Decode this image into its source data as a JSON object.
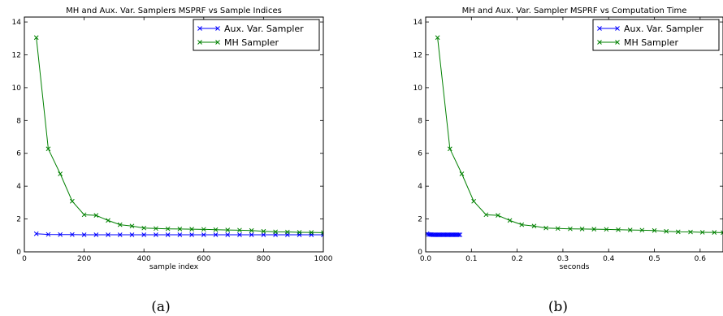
{
  "chart_data": [
    {
      "type": "line",
      "title": "MH and Aux. Var. Samplers MSPRF vs Sample Indices",
      "xlabel": "sample index",
      "ylabel": "",
      "xlim": [
        0,
        1000
      ],
      "ylim": [
        0,
        14.3
      ],
      "xticks": [
        0,
        200,
        400,
        600,
        800,
        1000
      ],
      "yticks": [
        0,
        2,
        4,
        6,
        8,
        10,
        12,
        14
      ],
      "grid": false,
      "legend": "top-right",
      "caption": "(a)",
      "series": [
        {
          "name": "Aux. Var. Sampler",
          "color": "#0000ff",
          "marker": "x",
          "x": [
            40,
            80,
            120,
            160,
            200,
            240,
            280,
            320,
            360,
            400,
            440,
            480,
            520,
            560,
            600,
            640,
            680,
            720,
            760,
            800,
            840,
            880,
            920,
            960,
            1000
          ],
          "y": [
            1.1,
            1.06,
            1.05,
            1.05,
            1.04,
            1.04,
            1.04,
            1.04,
            1.04,
            1.04,
            1.04,
            1.04,
            1.04,
            1.04,
            1.04,
            1.04,
            1.04,
            1.04,
            1.04,
            1.04,
            1.04,
            1.04,
            1.04,
            1.04,
            1.04
          ]
        },
        {
          "name": "MH Sampler",
          "color": "#008000",
          "marker": "x",
          "x": [
            40,
            80,
            120,
            160,
            200,
            240,
            280,
            320,
            360,
            400,
            440,
            480,
            520,
            560,
            600,
            640,
            680,
            720,
            760,
            800,
            840,
            880,
            920,
            960,
            1000
          ],
          "y": [
            13.05,
            6.27,
            4.75,
            3.08,
            2.26,
            2.22,
            1.91,
            1.65,
            1.57,
            1.45,
            1.42,
            1.4,
            1.39,
            1.38,
            1.37,
            1.35,
            1.33,
            1.32,
            1.3,
            1.25,
            1.22,
            1.21,
            1.19,
            1.18,
            1.17
          ]
        }
      ]
    },
    {
      "type": "line",
      "title": "MH and Aux. Var. Sampler MSPRF vs Computation Time",
      "xlabel": "seconds",
      "ylabel": "",
      "xlim": [
        0,
        0.65
      ],
      "ylim": [
        0,
        14.3
      ],
      "xticks": [
        0.0,
        0.1,
        0.2,
        0.3,
        0.4,
        0.5,
        0.6
      ],
      "xtick_labels": [
        "0.0",
        "0.1",
        "0.2",
        "0.3",
        "0.4",
        "0.5",
        "0.6"
      ],
      "yticks": [
        0,
        2,
        4,
        6,
        8,
        10,
        12,
        14
      ],
      "grid": false,
      "legend": "top-right",
      "caption": "(b)",
      "series": [
        {
          "name": "Aux. Var. Sampler",
          "color": "#0000ff",
          "marker": "x",
          "x": [
            0.003,
            0.006,
            0.009,
            0.012,
            0.015,
            0.018,
            0.021,
            0.024,
            0.027,
            0.03,
            0.033,
            0.036,
            0.039,
            0.042,
            0.045,
            0.048,
            0.051,
            0.054,
            0.057,
            0.06,
            0.063,
            0.066,
            0.069,
            0.072,
            0.075
          ],
          "y": [
            1.1,
            1.06,
            1.05,
            1.05,
            1.04,
            1.04,
            1.04,
            1.04,
            1.04,
            1.04,
            1.04,
            1.04,
            1.04,
            1.04,
            1.04,
            1.04,
            1.04,
            1.04,
            1.04,
            1.04,
            1.04,
            1.04,
            1.04,
            1.04,
            1.04
          ]
        },
        {
          "name": "MH Sampler",
          "color": "#008000",
          "marker": "x",
          "x": [
            0.026,
            0.053,
            0.079,
            0.105,
            0.132,
            0.158,
            0.184,
            0.21,
            0.237,
            0.263,
            0.289,
            0.316,
            0.342,
            0.368,
            0.395,
            0.421,
            0.447,
            0.473,
            0.5,
            0.526,
            0.552,
            0.579,
            0.605,
            0.631,
            0.65
          ],
          "y": [
            13.05,
            6.27,
            4.75,
            3.08,
            2.26,
            2.22,
            1.91,
            1.65,
            1.57,
            1.45,
            1.42,
            1.4,
            1.39,
            1.38,
            1.37,
            1.35,
            1.33,
            1.32,
            1.3,
            1.25,
            1.22,
            1.21,
            1.19,
            1.18,
            1.17
          ]
        }
      ]
    }
  ]
}
